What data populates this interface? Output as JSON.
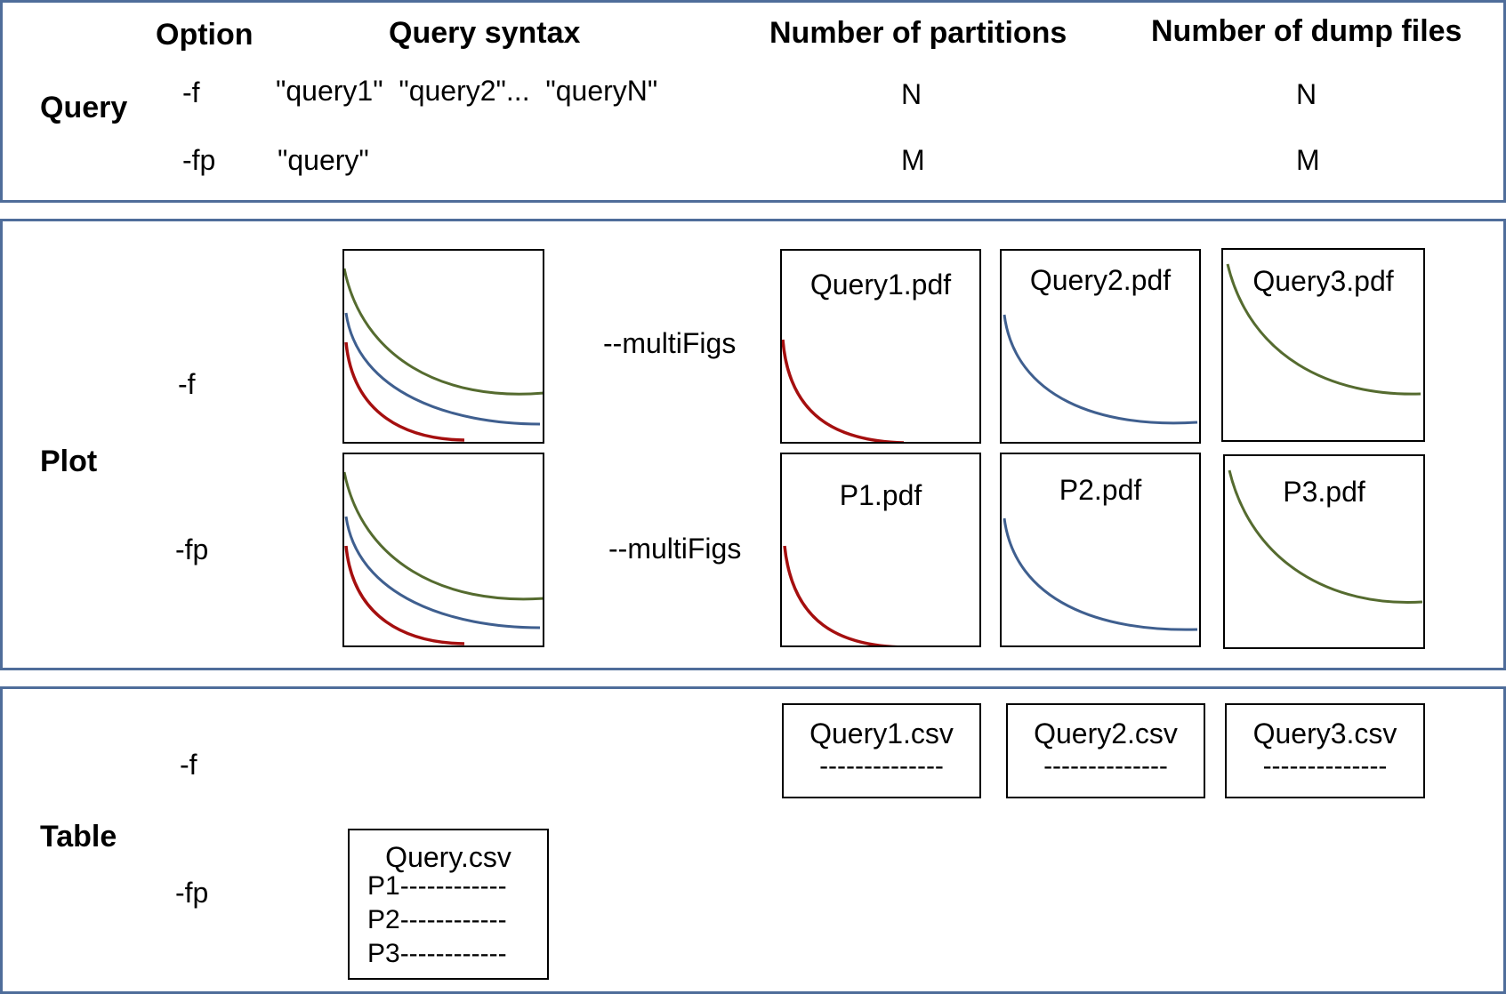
{
  "colors": {
    "border": "#4f6d9a",
    "red": "#a50f0f",
    "blue": "#3f5f8f",
    "green": "#556b2f"
  },
  "query_panel": {
    "section_label": "Query",
    "headers": {
      "option": "Option",
      "syntax": "Query syntax",
      "partitions": "Number of partitions",
      "dumps": "Number of dump files"
    },
    "rows": [
      {
        "option": "-f",
        "syntax": "\"query1\"  \"query2\"...  \"queryN\"",
        "partitions": "N",
        "dumps": "N"
      },
      {
        "option": "-fp",
        "syntax": "\"query\"",
        "partitions": "M",
        "dumps": "M"
      }
    ]
  },
  "plot_panel": {
    "section_label": "Plot",
    "rows": [
      {
        "option": "-f",
        "flag": "--multiFigs",
        "files": [
          "Query1.pdf",
          "Query2.pdf",
          "Query3.pdf"
        ]
      },
      {
        "option": "-fp",
        "flag": "--multiFigs",
        "files": [
          "P1.pdf",
          "P2.pdf",
          "P3.pdf"
        ]
      }
    ]
  },
  "table_panel": {
    "section_label": "Table",
    "rows": [
      {
        "option": "-f",
        "files": [
          {
            "name": "Query1.csv",
            "line": "--------------"
          },
          {
            "name": "Query2.csv",
            "line": "--------------"
          },
          {
            "name": "Query3.csv",
            "line": "--------------"
          }
        ]
      },
      {
        "option": "-fp",
        "file": {
          "name": "Query.csv",
          "lines": [
            "P1------------",
            "P2------------",
            "P3------------"
          ]
        }
      }
    ]
  }
}
